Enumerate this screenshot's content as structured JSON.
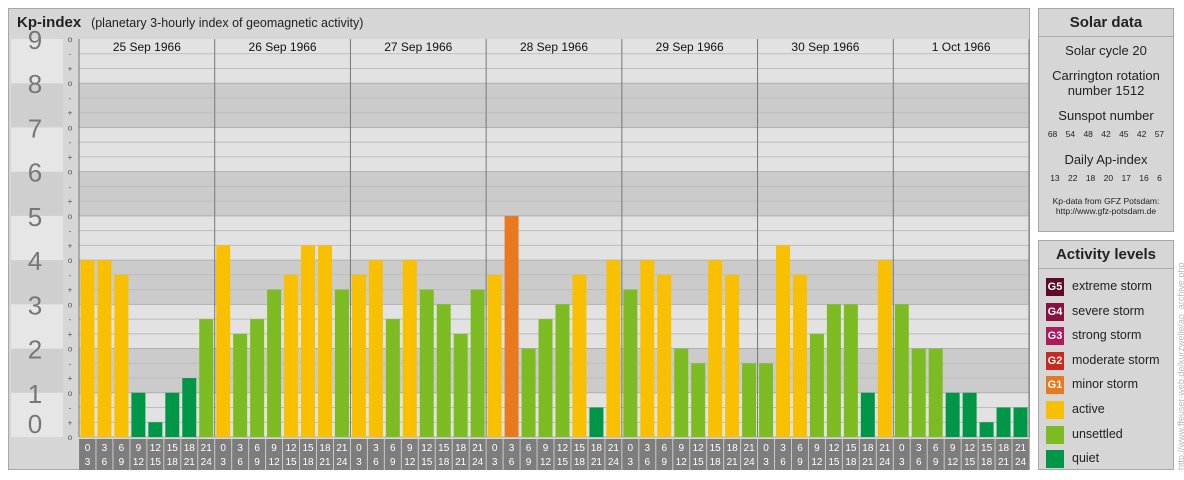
{
  "header": {
    "title": "Kp-index",
    "subtitle": "(planetary 3-hourly index of geomagnetic activity)"
  },
  "solar": {
    "title": "Solar data",
    "cycle": "Solar cycle 20",
    "carrington_1": "Carrington rotation",
    "carrington_2": "number 1512",
    "sunspot_label": "Sunspot number",
    "sunspot_values": "68 54 48 42 45 42 57",
    "ap_label": "Daily Ap-index",
    "ap_values": "13 22 18 20 17 16 6",
    "credit_1": "Kp-data from GFZ Potsdam:",
    "credit_2": "http://www.gfz-potsdam.de"
  },
  "activity": {
    "title": "Activity levels",
    "items": [
      {
        "code": "G5",
        "label": "extreme storm",
        "color": "#5a0a2a"
      },
      {
        "code": "G4",
        "label": "severe storm",
        "color": "#8a1040"
      },
      {
        "code": "G3",
        "label": "strong storm",
        "color": "#b0185a"
      },
      {
        "code": "G2",
        "label": "moderate storm",
        "color": "#c8281e"
      },
      {
        "code": "G1",
        "label": "minor storm",
        "color": "#e8791e"
      },
      {
        "code": "",
        "label": "active",
        "color": "#f8c000"
      },
      {
        "code": "",
        "label": "unsettled",
        "color": "#7cbc22"
      },
      {
        "code": "",
        "label": "quiet",
        "color": "#009648"
      }
    ]
  },
  "watermark": "http://www.ffeuser-web.de/kurzwelle/ap_archive.php",
  "chart_data": {
    "type": "bar",
    "title": "Kp-index",
    "subtitle": "(planetary 3-hourly index of geomagnetic activity)",
    "ylim": [
      0,
      9
    ],
    "y_ticks": [
      "0",
      "1",
      "2",
      "3",
      "4",
      "5",
      "6",
      "7",
      "8",
      "9"
    ],
    "minor_tick_labels": [
      "o",
      "+",
      "-"
    ],
    "days": [
      "25 Sep 1966",
      "26 Sep 1966",
      "27 Sep 1966",
      "28 Sep 1966",
      "29 Sep 1966",
      "30 Sep 1966",
      "1 Oct 1966"
    ],
    "interval_top": [
      "0",
      "3",
      "6",
      "9",
      "12",
      "15",
      "18",
      "21"
    ],
    "interval_bottom": [
      "3",
      "6",
      "9",
      "12",
      "15",
      "18",
      "21",
      "24"
    ],
    "values": [
      4,
      4,
      3.667,
      1,
      0.333,
      1,
      1.333,
      2.667,
      4.333,
      2.333,
      2.667,
      3.333,
      3.667,
      4.333,
      4.333,
      3.333,
      3.667,
      4,
      2.667,
      4,
      3.333,
      3,
      2.333,
      3.333,
      3.667,
      5,
      2,
      2.667,
      3,
      3.667,
      0.667,
      4,
      3.333,
      4,
      3.667,
      2,
      1.667,
      4,
      3.667,
      1.667,
      1.667,
      4.333,
      3.667,
      2.333,
      3,
      3,
      1,
      4,
      3,
      2,
      2,
      1,
      1,
      0.333,
      0.667,
      0.667
    ],
    "colors": {
      "quiet": "#009648",
      "unsettled": "#7cbc22",
      "active": "#f8c000",
      "minor_storm": "#e8791e"
    }
  }
}
